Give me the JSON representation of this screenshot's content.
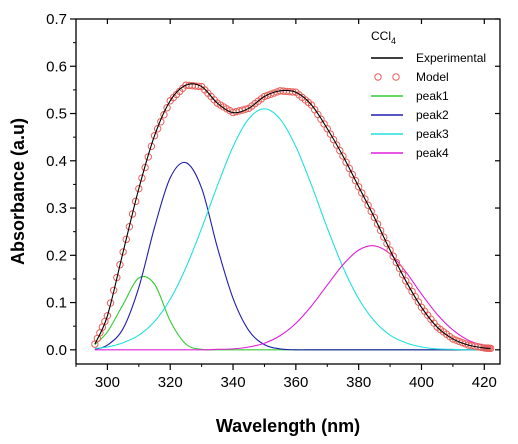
{
  "chart_data": {
    "type": "line",
    "title": "",
    "xlabel": "Wavelength (nm)",
    "ylabel": "Absorbance (a.u)",
    "xlim": [
      290,
      425
    ],
    "ylim": [
      -0.03,
      0.7
    ],
    "xticks": [
      300,
      320,
      340,
      360,
      380,
      400,
      420
    ],
    "yticks": [
      0.0,
      0.1,
      0.2,
      0.3,
      0.4,
      0.5,
      0.6,
      0.7
    ],
    "xtick_labels": [
      "300",
      "320",
      "340",
      "360",
      "380",
      "400",
      "420"
    ],
    "ytick_labels": [
      "0.0",
      "0.1",
      "0.2",
      "0.3",
      "0.4",
      "0.5",
      "0.6",
      "0.7"
    ],
    "grid": false,
    "legend": {
      "position": "top-right",
      "title": "CCl",
      "title_subscript": "4"
    },
    "series": [
      {
        "name": "Experimental",
        "kind": "line",
        "color": "#000000",
        "x": [
          296,
          300,
          305,
          310,
          315,
          320,
          325,
          330,
          335,
          340,
          345,
          350,
          355,
          360,
          365,
          370,
          375,
          380,
          385,
          390,
          395,
          400,
          405,
          410,
          415,
          420,
          422
        ],
        "y": [
          0.012,
          0.072,
          0.207,
          0.341,
          0.453,
          0.527,
          0.56,
          0.557,
          0.522,
          0.502,
          0.511,
          0.536,
          0.548,
          0.545,
          0.518,
          0.468,
          0.41,
          0.345,
          0.28,
          0.211,
          0.146,
          0.09,
          0.048,
          0.023,
          0.01,
          0.004,
          0.003
        ]
      },
      {
        "name": "Model",
        "kind": "markers",
        "color": "#e8605a",
        "x": [
          296,
          300,
          305,
          310,
          315,
          320,
          325,
          330,
          335,
          340,
          345,
          350,
          355,
          360,
          365,
          370,
          375,
          380,
          385,
          390,
          395,
          400,
          405,
          410,
          415,
          420,
          422
        ],
        "y": [
          0.012,
          0.072,
          0.207,
          0.341,
          0.453,
          0.527,
          0.56,
          0.557,
          0.522,
          0.502,
          0.511,
          0.536,
          0.548,
          0.545,
          0.518,
          0.468,
          0.41,
          0.345,
          0.28,
          0.211,
          0.146,
          0.09,
          0.048,
          0.023,
          0.01,
          0.004,
          0.003
        ]
      },
      {
        "name": "peak1",
        "kind": "line",
        "color": "#33cc33",
        "x": [
          296,
          300,
          305,
          310,
          315,
          320,
          325,
          330,
          335,
          340,
          345,
          350,
          355,
          360,
          365,
          370,
          375,
          380,
          385,
          390,
          395,
          400,
          405,
          410,
          415,
          420,
          422
        ],
        "y": [
          0.011,
          0.038,
          0.096,
          0.152,
          0.139,
          0.061,
          0.012,
          0.001,
          0,
          0,
          0,
          0,
          0,
          0,
          0,
          0,
          0,
          0,
          0,
          0,
          0,
          0,
          0,
          0,
          0,
          0,
          0
        ]
      },
      {
        "name": "peak2",
        "kind": "line",
        "color": "#1f1fb0",
        "x": [
          296,
          300,
          305,
          310,
          315,
          320,
          325,
          330,
          335,
          340,
          345,
          350,
          355,
          360,
          365,
          370,
          375,
          380,
          385,
          390,
          395,
          400,
          405,
          410,
          415,
          420,
          422
        ],
        "y": [
          0.001,
          0.01,
          0.045,
          0.132,
          0.259,
          0.364,
          0.396,
          0.342,
          0.217,
          0.109,
          0.041,
          0.011,
          0.002,
          0,
          0,
          0,
          0,
          0,
          0,
          0,
          0,
          0,
          0,
          0,
          0,
          0,
          0
        ]
      },
      {
        "name": "peak3",
        "kind": "line",
        "color": "#22e0e0",
        "x": [
          296,
          300,
          305,
          310,
          315,
          320,
          325,
          330,
          335,
          340,
          345,
          350,
          355,
          360,
          365,
          370,
          375,
          380,
          385,
          390,
          395,
          400,
          405,
          410,
          415,
          420,
          422
        ],
        "y": [
          0.003,
          0.006,
          0.015,
          0.031,
          0.06,
          0.107,
          0.174,
          0.257,
          0.347,
          0.43,
          0.489,
          0.51,
          0.488,
          0.43,
          0.348,
          0.258,
          0.175,
          0.108,
          0.061,
          0.031,
          0.015,
          0.006,
          0.002,
          0.001,
          0,
          0,
          0
        ]
      },
      {
        "name": "peak4",
        "kind": "line",
        "color": "#e020d8",
        "x": [
          296,
          300,
          305,
          310,
          315,
          320,
          325,
          330,
          335,
          340,
          345,
          350,
          355,
          360,
          365,
          370,
          375,
          380,
          385,
          390,
          395,
          400,
          405,
          410,
          415,
          420,
          422
        ],
        "y": [
          0,
          0,
          0,
          0,
          0,
          0,
          0,
          0,
          0.001,
          0.002,
          0.006,
          0.014,
          0.03,
          0.056,
          0.093,
          0.137,
          0.18,
          0.211,
          0.22,
          0.203,
          0.165,
          0.118,
          0.075,
          0.042,
          0.02,
          0.009,
          0.006
        ]
      }
    ]
  }
}
